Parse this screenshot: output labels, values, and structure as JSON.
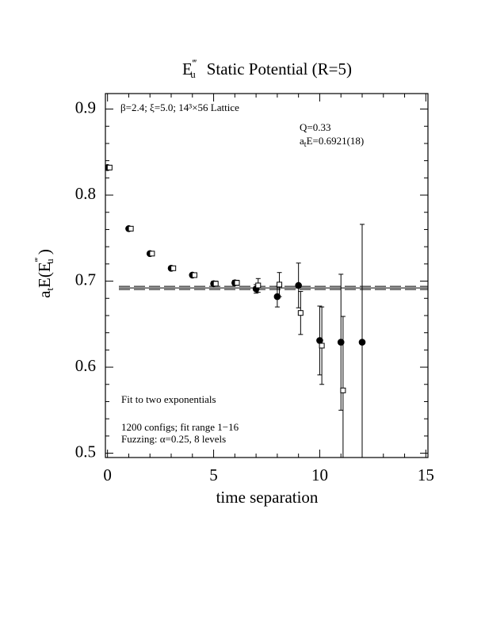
{
  "chart_data": {
    "type": "scatter",
    "title": {
      "symbol": "E",
      "sup": "‴",
      "sub": "u",
      "text": "Static Potential (R=5)"
    },
    "x_label": "time separation",
    "y_label": {
      "prefix": "a",
      "prefix_sub": "t",
      "open": "E(E",
      "sup": "‴",
      "sub": "u",
      "close": " )"
    },
    "annotations": {
      "lattice": "β=2.4; ξ=5.0; 14³×56 Lattice",
      "q": "Q=0.33",
      "fit_a": "a",
      "fit_sub": "t",
      "fit_text": "E=0.6921(18)",
      "fit_note": "Fit to two exponentials",
      "configs": "1200 configs; fit range 1−16",
      "fuzzing": "Fuzzing: α=0.25, 8 levels"
    },
    "fit": {
      "value": 0.6921,
      "error": 0.0018
    },
    "xlim": [
      -0.1,
      15.1
    ],
    "ylim": [
      0.495,
      0.918
    ],
    "xticks": [
      0,
      5,
      10,
      15
    ],
    "yticks": [
      {
        "value": 0.5,
        "label": "0.5"
      },
      {
        "value": 0.6,
        "label": "0.6"
      },
      {
        "value": 0.7,
        "label": "0.7"
      },
      {
        "value": 0.8,
        "label": "0.8"
      },
      {
        "value": 0.9,
        "label": "0.9"
      }
    ],
    "xticks_minor": [
      1,
      2,
      3,
      4,
      6,
      7,
      8,
      9,
      11,
      12,
      13,
      14
    ],
    "yticks_minor": [
      0.52,
      0.54,
      0.56,
      0.58,
      0.62,
      0.64,
      0.66,
      0.68,
      0.72,
      0.74,
      0.76,
      0.78,
      0.82,
      0.84,
      0.86,
      0.88
    ],
    "series": [
      {
        "marker": "circle",
        "color": "#000000",
        "x": [
          0,
          1,
          2,
          3,
          4,
          5,
          6,
          7,
          8,
          9,
          10,
          11,
          12
        ],
        "values": [
          0.832,
          0.761,
          0.732,
          0.715,
          0.707,
          0.697,
          0.698,
          0.691,
          0.682,
          0.695,
          0.631,
          0.629,
          0.629
        ],
        "errors": [
          0.002,
          0.002,
          0.002,
          0.002,
          0.002,
          0.003,
          0.003,
          0.005,
          0.012,
          0.026,
          0.04,
          0.079,
          0.137
        ]
      },
      {
        "marker": "square",
        "color": "#000000",
        "x": [
          0.1,
          1.1,
          2.1,
          3.1,
          4.1,
          5.1,
          6.1,
          7.1,
          8.1,
          9.1,
          10.1,
          11.1
        ],
        "values": [
          0.832,
          0.761,
          0.732,
          0.715,
          0.707,
          0.697,
          0.698,
          0.695,
          0.696,
          0.663,
          0.625,
          0.573
        ],
        "errors": [
          0.002,
          0.002,
          0.002,
          0.002,
          0.002,
          0.003,
          0.003,
          0.008,
          0.014,
          0.025,
          0.045,
          0.086
        ]
      }
    ]
  }
}
